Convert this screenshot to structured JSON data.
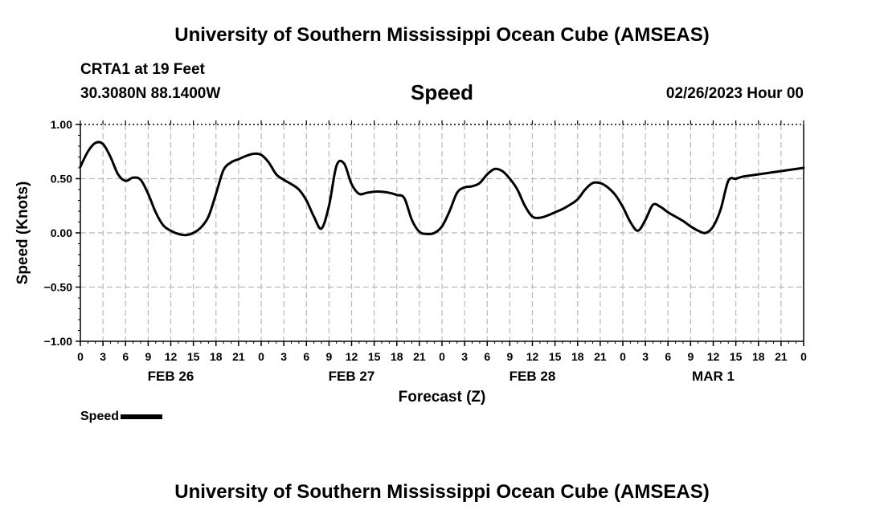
{
  "header": {
    "title": "University of Southern Mississippi Ocean Cube (AMSEAS)",
    "station": "CRTA1 at 19 Feet",
    "coords": "30.3080N  88.1400W",
    "date": "02/26/2023 Hour 00"
  },
  "footer": {
    "title": "University of Southern Mississippi Ocean Cube (AMSEAS)"
  },
  "legend": {
    "label": "Speed"
  },
  "chart_data": {
    "type": "line",
    "title": "Speed",
    "xlabel": "Forecast (Z)",
    "ylabel": "Speed (Knots)",
    "xlim": [
      0,
      96
    ],
    "ylim": [
      -1.0,
      1.0
    ],
    "y_ticks": [
      1.0,
      0.5,
      0.0,
      -0.5,
      -1.0
    ],
    "y_tick_labels": [
      "1.00",
      "0.50",
      "0.00",
      "−0.50",
      "−1.00"
    ],
    "x_ticks": [
      0,
      3,
      6,
      9,
      12,
      15,
      18,
      21,
      24,
      27,
      30,
      33,
      36,
      39,
      42,
      45,
      48,
      51,
      54,
      57,
      60,
      63,
      66,
      69,
      72,
      75,
      78,
      81,
      84,
      87,
      90,
      93,
      96
    ],
    "x_tick_labels": [
      "0",
      "3",
      "6",
      "9",
      "12",
      "15",
      "18",
      "21",
      "0",
      "3",
      "6",
      "9",
      "12",
      "15",
      "18",
      "21",
      "0",
      "3",
      "6",
      "9",
      "12",
      "15",
      "18",
      "21",
      "0",
      "3",
      "6",
      "9",
      "12",
      "15",
      "18",
      "21",
      "0"
    ],
    "day_labels": [
      {
        "hour": 12,
        "label": "FEB 26"
      },
      {
        "hour": 36,
        "label": "FEB 27"
      },
      {
        "hour": 60,
        "label": "FEB 28"
      },
      {
        "hour": 84,
        "label": "MAR 1"
      }
    ],
    "grid": true,
    "series": [
      {
        "name": "Speed",
        "x": [
          0,
          1,
          2,
          3,
          4,
          5,
          6,
          7,
          8,
          9,
          10,
          11,
          12,
          13,
          14,
          15,
          16,
          17,
          18,
          19,
          20,
          21,
          22,
          23,
          24,
          25,
          26,
          27,
          28,
          29,
          30,
          31,
          32,
          33,
          34,
          35,
          36,
          37,
          38,
          39,
          40,
          41,
          42,
          43,
          44,
          45,
          46,
          47,
          48,
          49,
          50,
          51,
          52,
          53,
          54,
          55,
          56,
          57,
          58,
          59,
          60,
          61,
          62,
          63,
          64,
          65,
          66,
          67,
          68,
          69,
          70,
          71,
          72,
          73,
          74,
          75,
          76,
          77,
          78,
          79,
          80,
          81,
          82,
          83,
          84,
          85,
          86,
          87,
          88,
          89,
          90,
          91,
          92,
          93,
          94,
          95,
          96
        ],
        "values": [
          0.61,
          0.75,
          0.83,
          0.82,
          0.7,
          0.54,
          0.48,
          0.51,
          0.49,
          0.36,
          0.19,
          0.07,
          0.02,
          -0.01,
          -0.02,
          0.0,
          0.05,
          0.15,
          0.36,
          0.58,
          0.65,
          0.68,
          0.71,
          0.73,
          0.72,
          0.65,
          0.54,
          0.49,
          0.45,
          0.4,
          0.3,
          0.15,
          0.04,
          0.25,
          0.62,
          0.64,
          0.45,
          0.36,
          0.37,
          0.38,
          0.38,
          0.37,
          0.35,
          0.32,
          0.12,
          0.01,
          -0.01,
          0.0,
          0.06,
          0.2,
          0.37,
          0.42,
          0.43,
          0.46,
          0.54,
          0.59,
          0.57,
          0.5,
          0.4,
          0.25,
          0.15,
          0.14,
          0.16,
          0.19,
          0.22,
          0.26,
          0.31,
          0.4,
          0.46,
          0.46,
          0.42,
          0.35,
          0.24,
          0.1,
          0.02,
          0.12,
          0.26,
          0.24,
          0.19,
          0.15,
          0.11,
          0.06,
          0.02,
          0.0,
          0.06,
          0.22,
          0.48,
          0.5,
          0.52,
          0.53,
          0.54,
          0.55,
          0.56,
          0.57,
          0.58,
          0.59,
          0.6
        ]
      }
    ]
  }
}
